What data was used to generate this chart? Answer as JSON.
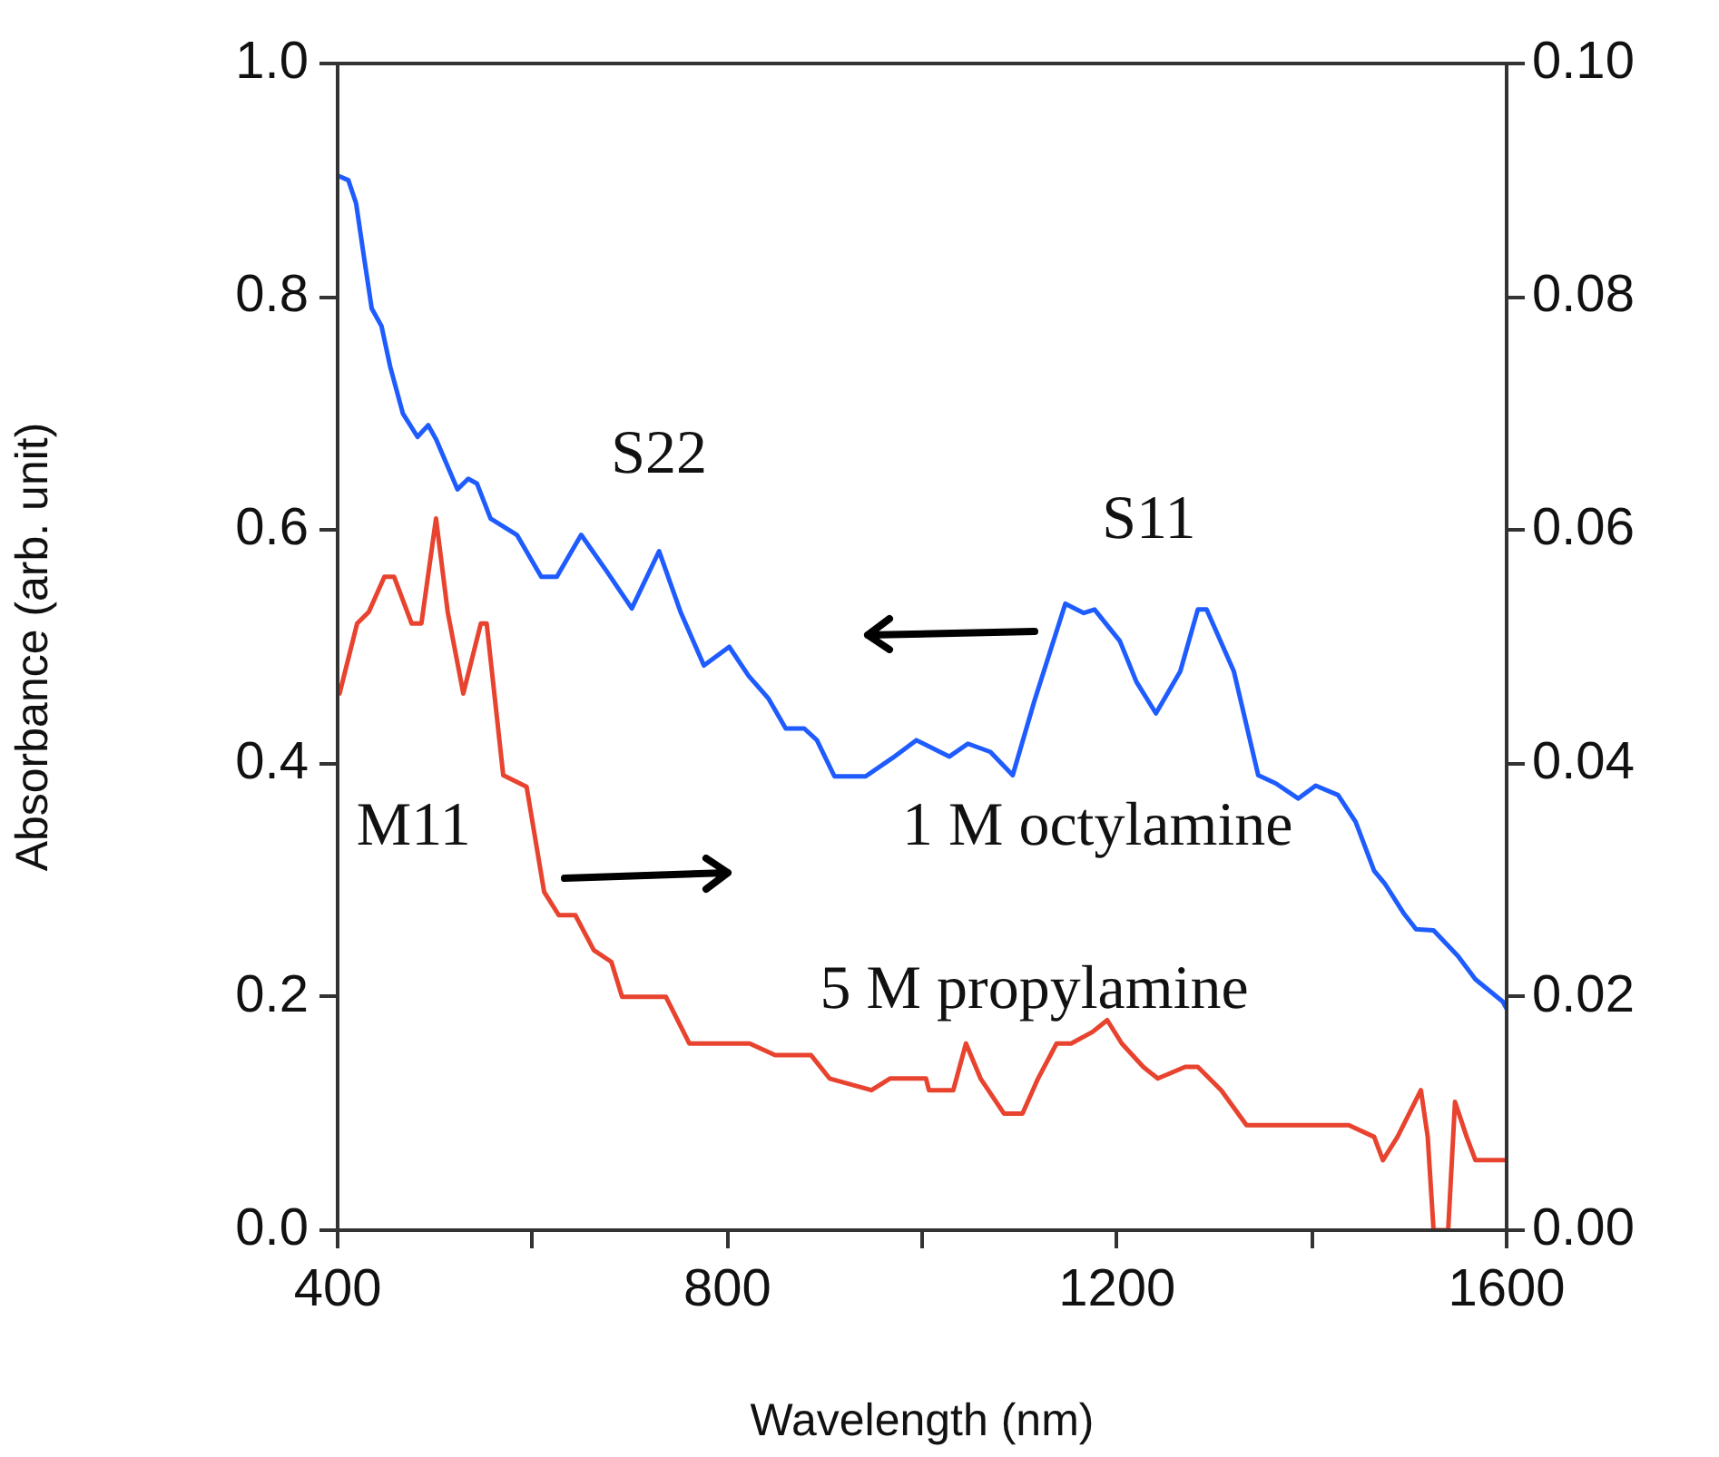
{
  "chart_data": {
    "type": "line",
    "xlabel": "Wavelength (nm)",
    "ylabel": "Absorbance (arb. unit)",
    "xlim": [
      400,
      1600
    ],
    "xticks": [
      400,
      {
        "value": 600,
        "label": null
      },
      800,
      {
        "value": 1000,
        "label": null
      },
      1200,
      {
        "value": 1400,
        "label": null
      },
      1600
    ],
    "ylim": [
      0,
      1
    ],
    "yticks": [
      {
        "value": 0,
        "label": "0.0"
      },
      0.2,
      0.4,
      0.6,
      0.8,
      {
        "value": 1,
        "label": "1.0"
      }
    ],
    "y2lim": [
      0,
      0.1
    ],
    "y2ticks": [
      {
        "value": 0,
        "label": "0.00"
      },
      0.02,
      0.04,
      0.06,
      0.08,
      {
        "value": 0.1,
        "label": "0.10"
      }
    ],
    "grid": false,
    "legend": false,
    "marker": "none",
    "annotations": [
      "S22",
      "S11",
      "M11"
    ],
    "series": [
      {
        "name": "1 M octylamine",
        "color": "#1f5cff",
        "x": [
          400,
          411,
          419,
          426,
          435,
          445,
          454,
          467,
          482,
          493,
          501,
          523,
          534,
          543,
          557,
          584,
          609,
          625,
          650,
          676,
          702,
          730,
          752,
          776,
          802,
          822,
          842,
          860,
          879,
          892,
          910,
          942,
          970,
          994,
          1028,
          1047,
          1070,
          1093,
          1115,
          1147,
          1166,
          1177,
          1203,
          1220,
          1240,
          1265,
          1283,
          1292,
          1320,
          1345,
          1363,
          1386,
          1404,
          1427,
          1445,
          1464,
          1475,
          1494,
          1507,
          1525,
          1550,
          1568,
          1596,
          1600
        ],
        "values": [
          0.904,
          0.9,
          0.88,
          0.84,
          0.79,
          0.775,
          0.74,
          0.7,
          0.68,
          0.69,
          0.678,
          0.635,
          0.644,
          0.64,
          0.61,
          0.596,
          0.56,
          0.56,
          0.596,
          0.565,
          0.533,
          0.582,
          0.53,
          0.484,
          0.5,
          0.475,
          0.456,
          0.43,
          0.43,
          0.42,
          0.389,
          0.389,
          0.405,
          0.42,
          0.406,
          0.417,
          0.41,
          0.39,
          0.453,
          0.537,
          0.529,
          0.532,
          0.505,
          0.47,
          0.443,
          0.479,
          0.532,
          0.532,
          0.479,
          0.39,
          0.383,
          0.37,
          0.381,
          0.373,
          0.35,
          0.308,
          0.297,
          0.272,
          0.258,
          0.257,
          0.235,
          0.215,
          0.196,
          0.19
        ]
      },
      {
        "name": "5 M propylamine",
        "color": "#e8432f",
        "axis": "y2",
        "x": [
          400,
          402,
          420,
          432,
          448,
          458,
          476,
          486,
          501,
          513,
          529,
          547,
          553,
          570,
          594,
          612,
          627,
          644,
          663,
          681,
          692,
          737,
          761,
          793,
          823,
          849,
          886,
          905,
          948,
          967,
          1004,
          1007,
          1032,
          1045,
          1060,
          1084,
          1103,
          1119,
          1138,
          1153,
          1175,
          1190,
          1205,
          1227,
          1242,
          1270,
          1283,
          1307,
          1333,
          1382,
          1438,
          1464,
          1473,
          1488,
          1512,
          1519,
          1525,
          1540,
          1547,
          1559,
          1568,
          1600
        ],
        "values": [
          0.046,
          0.046,
          0.052,
          0.053,
          0.056,
          0.056,
          0.052,
          0.052,
          0.061,
          0.053,
          0.046,
          0.052,
          0.052,
          0.039,
          0.038,
          0.029,
          0.027,
          0.027,
          0.024,
          0.023,
          0.02,
          0.02,
          0.016,
          0.016,
          0.016,
          0.015,
          0.015,
          0.013,
          0.012,
          0.013,
          0.013,
          0.012,
          0.012,
          0.016,
          0.013,
          0.01,
          0.01,
          0.013,
          0.016,
          0.016,
          0.017,
          0.018,
          0.016,
          0.014,
          0.013,
          0.014,
          0.014,
          0.012,
          0.009,
          0.009,
          0.009,
          0.008,
          0.006,
          0.008,
          0.012,
          0.008,
          0.0,
          0.0,
          0.011,
          0.008,
          0.006,
          0.006
        ]
      }
    ]
  }
}
